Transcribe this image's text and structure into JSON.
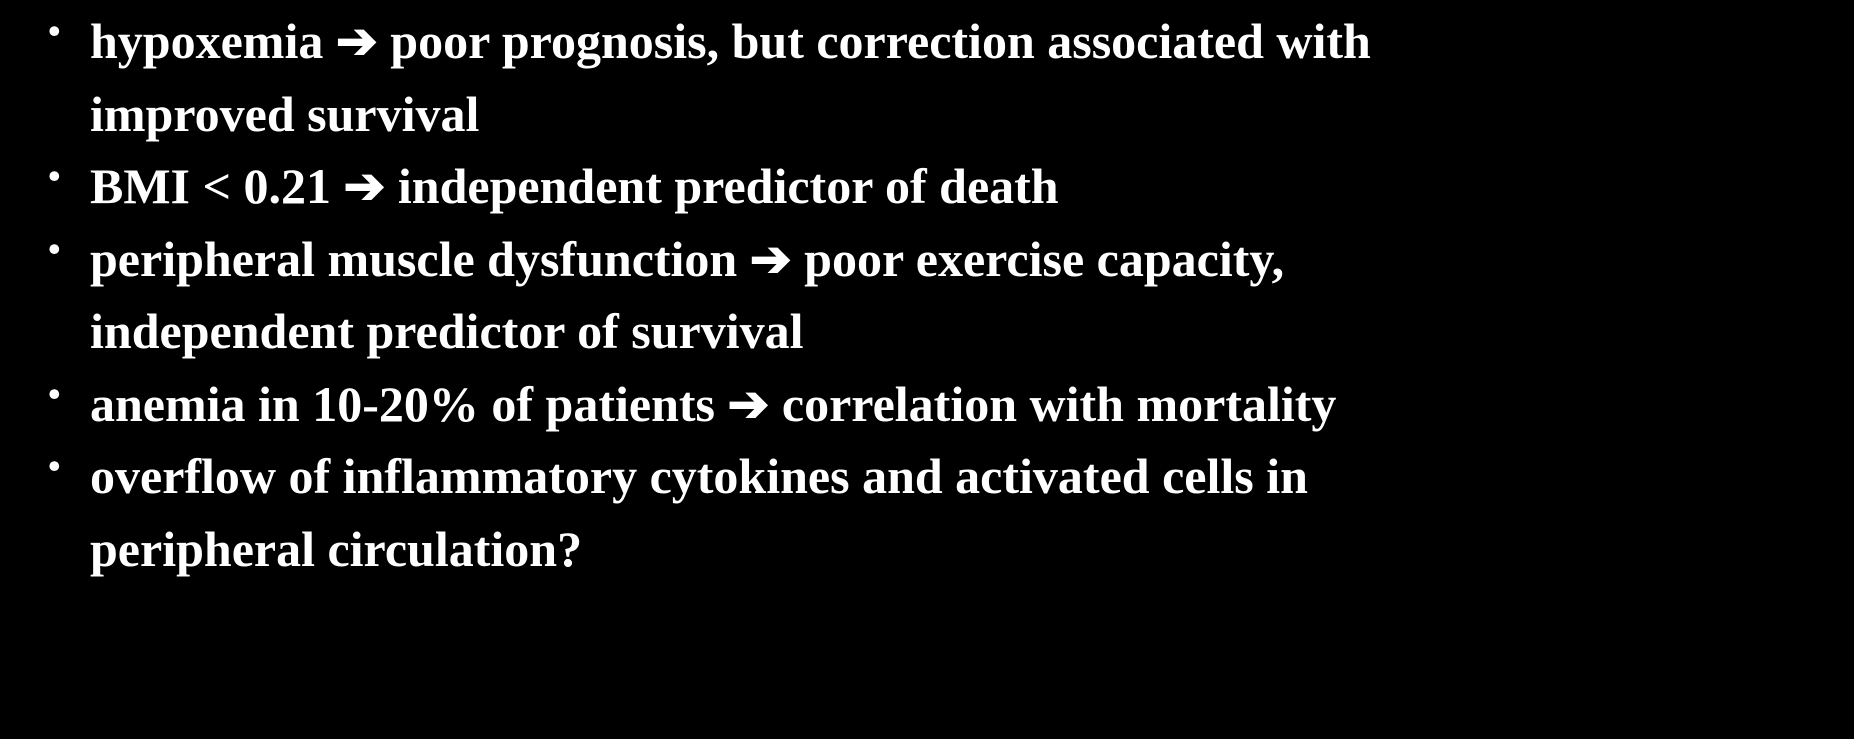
{
  "bullets": [
    {
      "line1_before": "hypoxemia ",
      "arrow": "➔",
      "line1_after": " poor prognosis, but correction associated with",
      "line2": "improved survival"
    },
    {
      "line1_before": "BMI < 0.21 ",
      "arrow": "➔",
      "line1_after": " independent predictor of death",
      "line2": ""
    },
    {
      "line1_before": "peripheral muscle dysfunction ",
      "arrow": "➔",
      "line1_after": " poor exercise capacity,",
      "line2": "independent predictor of survival"
    },
    {
      "line1_before": "anemia in 10-20% of patients ",
      "arrow": "➔",
      "line1_after": " correlation with mortality",
      "line2": ""
    },
    {
      "line1_before": "overflow of inflammatory cytokines and activated cells in",
      "arrow": "",
      "line1_after": "",
      "line2": "peripheral circulation?"
    }
  ]
}
